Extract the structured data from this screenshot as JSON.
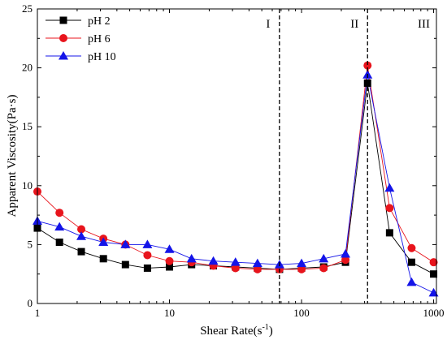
{
  "chart_data": {
    "type": "line",
    "xlabel": "Shear Rate(s",
    "xlabel_sup": "-1",
    "xlabel_end": ")",
    "ylabel": "Apparent Viscosity(Pa·s)",
    "xscale": "log",
    "xlim": [
      1,
      1050
    ],
    "ylim": [
      0,
      25
    ],
    "xticks": [
      {
        "value": 1,
        "label": "1"
      },
      {
        "value": 10,
        "label": "10"
      },
      {
        "value": 100,
        "label": "100"
      },
      {
        "value": 1000,
        "label": "1000"
      }
    ],
    "yticks": [
      {
        "value": 0,
        "label": "0"
      },
      {
        "value": 5,
        "label": "5"
      },
      {
        "value": 10,
        "label": "10"
      },
      {
        "value": 15,
        "label": "15"
      },
      {
        "value": 20,
        "label": "20"
      },
      {
        "value": 25,
        "label": "25"
      }
    ],
    "legend_position": "top-left",
    "grid": false,
    "vlines": [
      {
        "x": 68,
        "label": "I"
      },
      {
        "x": 316,
        "label": "II"
      }
    ],
    "region_labels": [
      {
        "x": 68,
        "label": "I"
      },
      {
        "x": 316,
        "label": "II"
      },
      {
        "x": 1000,
        "label": "III"
      }
    ],
    "x": [
      1,
      1.47,
      2.15,
      3.16,
      4.64,
      6.81,
      10,
      14.7,
      21.5,
      31.6,
      46.4,
      68.1,
      100,
      147,
      215,
      316,
      464,
      681,
      1000
    ],
    "series": [
      {
        "name": "pH 2",
        "color": "#000000",
        "marker": "square",
        "values": [
          6.4,
          5.2,
          4.4,
          3.8,
          3.3,
          3.0,
          3.1,
          3.3,
          3.2,
          3.1,
          3.0,
          2.9,
          3.0,
          3.1,
          3.5,
          18.7,
          6.0,
          3.5,
          2.5
        ]
      },
      {
        "name": "pH 6",
        "color": "#e8141c",
        "marker": "circle",
        "values": [
          9.5,
          7.7,
          6.3,
          5.5,
          5.0,
          4.1,
          3.6,
          3.5,
          3.2,
          3.0,
          2.9,
          2.9,
          2.9,
          3.0,
          3.7,
          20.2,
          8.1,
          4.7,
          3.5
        ]
      },
      {
        "name": "pH 10",
        "color": "#1414e8",
        "marker": "triangle",
        "values": [
          7.0,
          6.5,
          5.7,
          5.2,
          5.0,
          5.0,
          4.6,
          3.8,
          3.6,
          3.5,
          3.4,
          3.3,
          3.4,
          3.8,
          4.2,
          19.4,
          9.8,
          1.8,
          0.9
        ]
      }
    ]
  }
}
